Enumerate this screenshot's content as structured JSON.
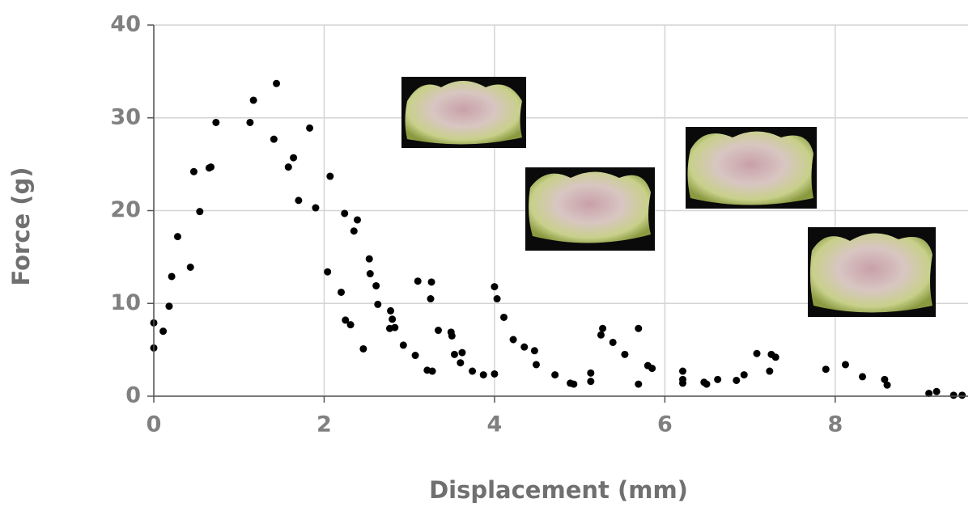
{
  "chart_data": {
    "type": "scatter",
    "xlabel": "Displacement (mm)",
    "ylabel": "Force (g)",
    "x": [
      0,
      0,
      0.11,
      0.18,
      0.21,
      0.28,
      0.43,
      0.47,
      0.54,
      0.65,
      0.67,
      0.73,
      1.13,
      1.17,
      1.41,
      1.44,
      1.58,
      1.64,
      1.7,
      1.83,
      1.9,
      2.04,
      2.07,
      2.2,
      2.24,
      2.25,
      2.31,
      2.35,
      2.39,
      2.46,
      2.53,
      2.54,
      2.61,
      2.63,
      2.78,
      2.8,
      2.77,
      2.83,
      2.93,
      3.07,
      3.1,
      3.21,
      3.26,
      3.25,
      3.27,
      3.34,
      3.49,
      3.5,
      3.53,
      3.62,
      3.6,
      3.74,
      3.87,
      4.0,
      4.0,
      4.03,
      4.11,
      4.22,
      4.35,
      4.47,
      4.49,
      4.71,
      4.89,
      4.93,
      5.13,
      5.13,
      5.25,
      5.27,
      5.39,
      5.53,
      5.69,
      5.69,
      5.8,
      5.85,
      6.21,
      6.21,
      6.21,
      6.46,
      6.49,
      6.62,
      6.84,
      6.93,
      7.08,
      7.23,
      7.25,
      7.3,
      7.89,
      8.12,
      8.32,
      8.58,
      8.61,
      9.1,
      9.19,
      9.39,
      9.49
    ],
    "y": [
      7.9,
      5.2,
      7.0,
      9.7,
      12.9,
      17.2,
      13.9,
      24.2,
      19.9,
      24.6,
      24.7,
      29.5,
      29.5,
      31.9,
      27.7,
      33.7,
      24.7,
      25.7,
      21.1,
      28.9,
      20.3,
      13.4,
      23.7,
      11.2,
      19.7,
      8.2,
      7.7,
      17.8,
      19.0,
      5.1,
      14.8,
      13.2,
      11.9,
      9.9,
      9.2,
      8.3,
      7.3,
      7.4,
      5.5,
      4.4,
      12.4,
      2.8,
      12.3,
      10.5,
      2.7,
      7.1,
      6.9,
      6.5,
      4.5,
      4.7,
      3.6,
      2.7,
      2.3,
      2.4,
      11.8,
      10.5,
      8.5,
      6.1,
      5.3,
      4.9,
      3.4,
      2.3,
      1.4,
      1.3,
      2.5,
      1.6,
      6.6,
      7.3,
      5.8,
      4.5,
      1.3,
      7.3,
      3.3,
      3.0,
      2.7,
      1.8,
      1.4,
      1.5,
      1.3,
      1.8,
      1.7,
      2.3,
      4.6,
      2.7,
      4.5,
      4.2,
      2.9,
      3.4,
      2.1,
      1.8,
      1.2,
      0.3,
      0.5,
      0.1,
      0.1
    ],
    "color": "#000000",
    "xlim": [
      0,
      9.56
    ],
    "ylim": [
      0,
      40
    ],
    "xticks": [
      0,
      2,
      4,
      6,
      8
    ],
    "yticks": [
      0,
      10,
      20,
      30,
      40
    ],
    "grid": true
  }
}
